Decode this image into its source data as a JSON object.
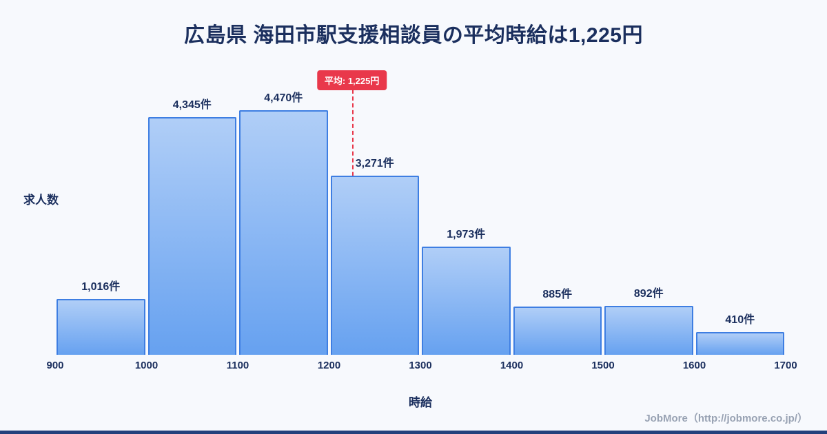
{
  "page": {
    "title": "広島県 海田市駅支援相談員の平均時給は1,225円",
    "footer": "JobMore（http://jobmore.co.jp/）"
  },
  "chart_data": {
    "type": "bar",
    "title": "広島県 海田市駅支援相談員の平均時給は1,225円",
    "xlabel": "時給",
    "ylabel": "求人数",
    "x_range": [
      900,
      1700
    ],
    "bin_width": 100,
    "categories": [
      "900-1000",
      "1000-1100",
      "1100-1200",
      "1200-1300",
      "1300-1400",
      "1400-1500",
      "1500-1600",
      "1600-1700"
    ],
    "values": [
      1016,
      4345,
      4470,
      3271,
      1973,
      885,
      892,
      410
    ],
    "bar_labels": [
      "1,016件",
      "4,345件",
      "4,470件",
      "3,271件",
      "1,973件",
      "885件",
      "892件",
      "410件"
    ],
    "x_ticks": [
      "900",
      "1000",
      "1100",
      "1200",
      "1300",
      "1400",
      "1500",
      "1600",
      "1700"
    ],
    "average": {
      "value": 1225,
      "label": "平均: 1,225円"
    },
    "grid": false,
    "legend": false,
    "colors": {
      "navy": "#1b2f5e",
      "red": "#e9384b",
      "bar_gradient_top": "#b0cef7",
      "bar_gradient_bottom": "#66a1f0",
      "bar_border": "#3e7ee2",
      "background": "#f7f9fd",
      "footer_gray": "#98a2b3",
      "bottom_bar": "#24407c"
    }
  }
}
